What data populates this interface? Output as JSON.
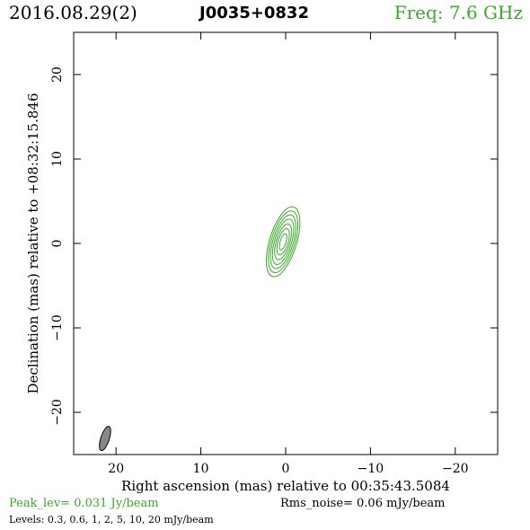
{
  "header": {
    "date": "2016.08.29(2)",
    "source": "J0035+0832",
    "frequency": "Freq: 7.6 GHz"
  },
  "footer": {
    "peak": "Peak_lev=  0.031 Jy/beam",
    "rms": "Rms_noise= 0.06 mJy/beam",
    "levels": "Levels: 0.3,  0.6,    1,    2,    5,   10,   20 mJy/beam"
  },
  "colors": {
    "contour": "#3aa829",
    "beam_fill": "#888888",
    "header_green": "#3aa829"
  },
  "chart_data": {
    "type": "contour",
    "xlabel": "Right ascension (mas) relative to 00:35:43.5084",
    "ylabel": "Declination (mas) relative to +08:32:15.846",
    "xlim": [
      25,
      -25
    ],
    "ylim": [
      -25,
      25
    ],
    "xticks": [
      20,
      10,
      0,
      -10,
      -20
    ],
    "yticks": [
      20,
      10,
      0,
      -10,
      -20
    ],
    "xtick_labels": [
      "20",
      "10",
      "0",
      "−10",
      "−20"
    ],
    "ytick_labels": [
      "20",
      "10",
      "0",
      "−10",
      "−20"
    ],
    "contours": {
      "center": [
        0.3,
        0.2
      ],
      "position_angle_deg": 17,
      "semi_major_mas": [
        4.3,
        3.8,
        3.3,
        2.8,
        2.2,
        1.6,
        1.0
      ],
      "semi_minor_mas": [
        1.6,
        1.4,
        1.2,
        1.0,
        0.8,
        0.6,
        0.35
      ],
      "level_labels": [
        "0.3",
        "0.6",
        "1",
        "2",
        "5",
        "10",
        "20"
      ]
    },
    "beam": {
      "center": [
        21.3,
        -23.1
      ],
      "semi_major_mas": 1.5,
      "semi_minor_mas": 0.5,
      "position_angle_deg": 18
    }
  }
}
